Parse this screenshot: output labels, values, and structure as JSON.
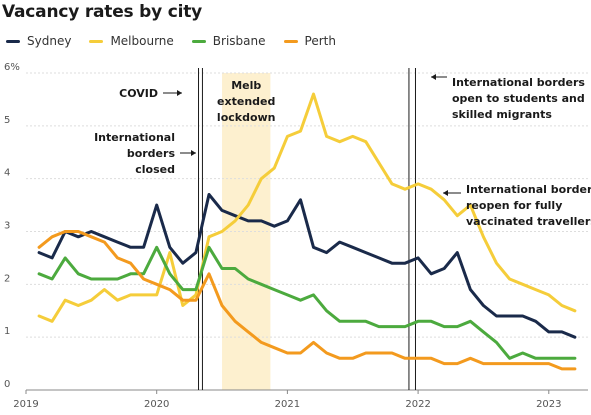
{
  "chart_data": {
    "type": "line",
    "title": "Vacancy rates by city",
    "xlabel": "",
    "ylabel": "",
    "ylim": [
      0,
      6
    ],
    "y_ticks": [
      "0",
      "1",
      "2",
      "3",
      "4",
      "5",
      "6%"
    ],
    "xlim": [
      2019,
      2023.3
    ],
    "x_ticks": [
      {
        "value": 2019,
        "label": "2019"
      },
      {
        "value": 2020,
        "label": "2020"
      },
      {
        "value": 2021,
        "label": "2021"
      },
      {
        "value": 2022,
        "label": "2022"
      },
      {
        "value": 2023,
        "label": "2023"
      }
    ],
    "grid": "horizontal",
    "legend": "top-left",
    "x": [
      2019.1,
      2019.2,
      2019.3,
      2019.4,
      2019.5,
      2019.6,
      2019.7,
      2019.8,
      2019.9,
      2020.0,
      2020.1,
      2020.2,
      2020.3,
      2020.4,
      2020.5,
      2020.6,
      2020.7,
      2020.8,
      2020.9,
      2021.0,
      2021.1,
      2021.2,
      2021.3,
      2021.4,
      2021.5,
      2021.6,
      2021.7,
      2021.8,
      2021.9,
      2022.0,
      2022.1,
      2022.2,
      2022.3,
      2022.4,
      2022.5,
      2022.6,
      2022.7,
      2022.8,
      2022.9,
      2023.0,
      2023.1,
      2023.2
    ],
    "series": [
      {
        "name": "Sydney",
        "color": "#1a2a4a",
        "values": [
          2.6,
          2.5,
          3.0,
          2.9,
          3.0,
          2.9,
          2.8,
          2.7,
          2.7,
          3.5,
          2.7,
          2.4,
          2.6,
          3.7,
          3.4,
          3.3,
          3.2,
          3.2,
          3.1,
          3.2,
          3.6,
          2.7,
          2.6,
          2.8,
          2.7,
          2.6,
          2.5,
          2.4,
          2.4,
          2.5,
          2.2,
          2.3,
          2.6,
          1.9,
          1.6,
          1.4,
          1.4,
          1.4,
          1.3,
          1.1,
          1.1,
          1.0
        ]
      },
      {
        "name": "Melbourne",
        "color": "#f5cd3a",
        "values": [
          1.4,
          1.3,
          1.7,
          1.6,
          1.7,
          1.9,
          1.7,
          1.8,
          1.8,
          1.8,
          2.6,
          1.6,
          1.8,
          2.9,
          3.0,
          3.2,
          3.5,
          4.0,
          4.2,
          4.8,
          4.9,
          5.6,
          4.8,
          4.7,
          4.8,
          4.7,
          4.3,
          3.9,
          3.8,
          3.9,
          3.8,
          3.6,
          3.3,
          3.5,
          2.9,
          2.4,
          2.1,
          2.0,
          1.9,
          1.8,
          1.6,
          1.5
        ]
      },
      {
        "name": "Brisbane",
        "color": "#4caa3e",
        "values": [
          2.2,
          2.1,
          2.5,
          2.2,
          2.1,
          2.1,
          2.1,
          2.2,
          2.2,
          2.7,
          2.2,
          1.9,
          1.9,
          2.7,
          2.3,
          2.3,
          2.1,
          2.0,
          1.9,
          1.8,
          1.7,
          1.8,
          1.5,
          1.3,
          1.3,
          1.3,
          1.2,
          1.2,
          1.2,
          1.3,
          1.3,
          1.2,
          1.2,
          1.3,
          1.1,
          0.9,
          0.6,
          0.7,
          0.6,
          0.6,
          0.6,
          0.6
        ]
      },
      {
        "name": "Perth",
        "color": "#f39a1e",
        "values": [
          2.7,
          2.9,
          3.0,
          3.0,
          2.9,
          2.8,
          2.5,
          2.4,
          2.1,
          2.0,
          1.9,
          1.7,
          1.7,
          2.2,
          1.6,
          1.3,
          1.1,
          0.9,
          0.8,
          0.7,
          0.7,
          0.9,
          0.7,
          0.6,
          0.6,
          0.7,
          0.7,
          0.7,
          0.6,
          0.6,
          0.6,
          0.5,
          0.5,
          0.6,
          0.5,
          0.5,
          0.5,
          0.5,
          0.5,
          0.5,
          0.4,
          0.4
        ]
      }
    ],
    "event_lines": [
      {
        "value": 2020.32,
        "label": "COVID"
      },
      {
        "value": 2020.35,
        "label": "International borders closed"
      },
      {
        "value": 2021.93,
        "label": "International borders open to students and skilled migrants"
      },
      {
        "value": 2021.98,
        "label": "International borders reopen for fully vaccinated travellers"
      }
    ],
    "shaded_period": {
      "start": 2020.5,
      "end": 2020.87,
      "label": "Melb extended lockdown",
      "color": "#fdf0cf"
    },
    "annotations": {
      "covid": "COVID",
      "borders_closed_1": "International",
      "borders_closed_2": "borders",
      "borders_closed_3": "closed",
      "lockdown_1": "Melb",
      "lockdown_2": "extended",
      "lockdown_3": "lockdown",
      "students_1": "International borders",
      "students_2": "open to students and",
      "students_3": "skilled migrants",
      "reopen_1": "International borders",
      "reopen_2": "reopen for fully",
      "reopen_3": "vaccinated travellers"
    }
  }
}
